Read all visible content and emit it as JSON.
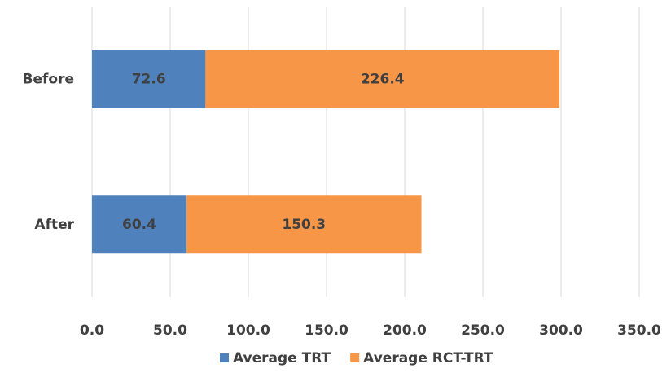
{
  "chart_data": {
    "type": "bar",
    "orientation": "horizontal",
    "stacked": true,
    "grid": true,
    "legend": "bottom",
    "categories": [
      "Before",
      "After"
    ],
    "series": [
      {
        "name": "Average TRT",
        "color": "#4f81bd",
        "values": [
          72.6,
          60.4
        ]
      },
      {
        "name": "Average RCT-TRT",
        "color": "#f79646",
        "values": [
          226.4,
          150.3
        ]
      }
    ],
    "xlim": [
      0,
      350
    ],
    "xticks": [
      {
        "value": 0,
        "label": "0.0"
      },
      {
        "value": 50,
        "label": "50.0"
      },
      {
        "value": 100,
        "label": "100.0"
      },
      {
        "value": 150,
        "label": "150.0"
      },
      {
        "value": 200,
        "label": "200.0"
      },
      {
        "value": 250,
        "label": "250.0"
      },
      {
        "value": 300,
        "label": "300.0"
      },
      {
        "value": 350,
        "label": "350.0"
      }
    ]
  }
}
